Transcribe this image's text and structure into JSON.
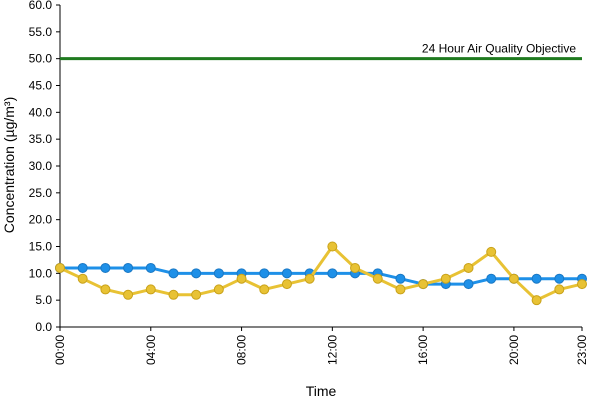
{
  "chart_data": {
    "type": "line",
    "title": "",
    "xlabel": "Time",
    "ylabel": "Concentration (µg/m³)",
    "ylim": [
      0,
      60
    ],
    "y_tick_step": 5,
    "y_tick_labels": [
      "0.0",
      "5.0",
      "10.0",
      "15.0",
      "20.0",
      "25.0",
      "30.0",
      "35.0",
      "40.0",
      "45.0",
      "50.0",
      "55.0",
      "60.0"
    ],
    "x_categories": [
      "00:00",
      "01:00",
      "02:00",
      "03:00",
      "04:00",
      "05:00",
      "06:00",
      "07:00",
      "08:00",
      "09:00",
      "10:00",
      "11:00",
      "12:00",
      "13:00",
      "14:00",
      "15:00",
      "16:00",
      "17:00",
      "18:00",
      "19:00",
      "20:00",
      "21:00",
      "22:00",
      "23:00"
    ],
    "x_tick_labels": [
      "00:00",
      "04:00",
      "08:00",
      "12:00",
      "16:00",
      "20:00",
      "23:00"
    ],
    "x_tick_indices": [
      0,
      4,
      8,
      12,
      16,
      20,
      23
    ],
    "grid": false,
    "legend": "none",
    "series": [
      {
        "color": "#1e90e8",
        "values": [
          11,
          11,
          11,
          11,
          11,
          10,
          10,
          10,
          10,
          10,
          10,
          10,
          10,
          10,
          10,
          9,
          8,
          8,
          8,
          9,
          9,
          9,
          9,
          9
        ]
      },
      {
        "color": "#e8c234",
        "values": [
          11,
          9,
          7,
          6,
          7,
          6,
          6,
          7,
          9,
          7,
          8,
          9,
          15,
          11,
          9,
          7,
          8,
          9,
          11,
          14,
          9,
          5,
          7,
          8
        ]
      }
    ],
    "reference_line": {
      "value": 50,
      "label": "24 Hour Air Quality Objective",
      "color": "#1f7a1f"
    }
  }
}
